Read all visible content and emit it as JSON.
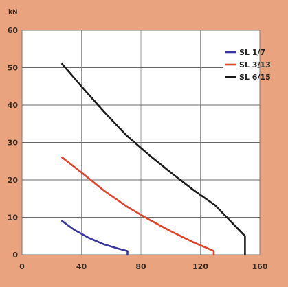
{
  "chart_data": {
    "type": "line",
    "ylabel": "kN",
    "xlim": [
      0,
      160
    ],
    "ylim": [
      0,
      60
    ],
    "xticks": [
      0,
      40,
      80,
      120,
      160
    ],
    "yticks": [
      0,
      10,
      20,
      30,
      40,
      50,
      60
    ],
    "grid": true,
    "legend_position": "top-right",
    "series": [
      {
        "name": "SL 1/7",
        "color": "#3a36a0",
        "x": [
          27,
          35,
          45,
          55,
          65,
          71,
          71
        ],
        "y": [
          9,
          6.7,
          4.5,
          2.8,
          1.6,
          1,
          0
        ]
      },
      {
        "name": "SL 3/13",
        "color": "#e0442c",
        "x": [
          27,
          40,
          55,
          70,
          85,
          100,
          115,
          129,
          129
        ],
        "y": [
          26,
          22,
          17.2,
          13,
          9.5,
          6.3,
          3.4,
          1,
          0
        ]
      },
      {
        "name": "SL 6/15",
        "color": "#1a1a1a",
        "x": [
          27,
          40,
          55,
          70,
          85,
          100,
          115,
          130,
          150,
          150
        ],
        "y": [
          51,
          45,
          38.3,
          32,
          26.8,
          22,
          17.4,
          13.2,
          5,
          0
        ]
      }
    ]
  }
}
